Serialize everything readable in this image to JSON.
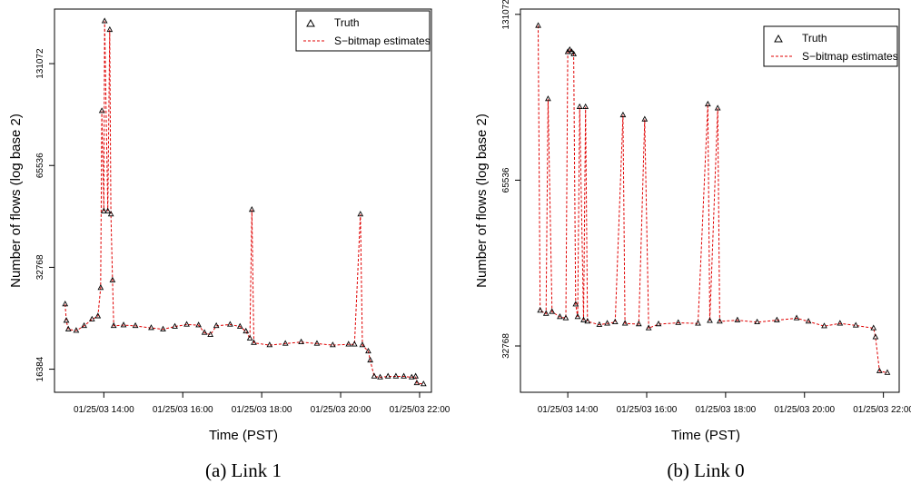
{
  "chart_data": [
    {
      "type": "line",
      "caption": "(a) Link 1",
      "xlabel": "Time (PST)",
      "ylabel": "Number of flows (log base 2)",
      "x_ticks": [
        "01/25/03 14:00",
        "01/25/03 16:00",
        "01/25/03 18:00",
        "01/25/03 20:00",
        "01/25/03 22:00"
      ],
      "y_ticks": [
        "16384",
        "32768",
        "65536",
        "131072"
      ],
      "y_scale": "log2",
      "ylim": [
        14000,
        190000
      ],
      "xlim_hours": [
        12.75,
        22.3
      ],
      "legend": {
        "position": "top-right",
        "entries": [
          "Truth",
          "S−bitmap estimates"
        ]
      },
      "series": [
        {
          "name": "Truth",
          "points": [
            [
              13.02,
              25500
            ],
            [
              13.05,
              22800
            ],
            [
              13.1,
              21500
            ],
            [
              13.3,
              21300
            ],
            [
              13.5,
              22000
            ],
            [
              13.7,
              23000
            ],
            [
              13.85,
              23500
            ],
            [
              13.92,
              28500
            ],
            [
              13.95,
              95000
            ],
            [
              14.0,
              48000
            ],
            [
              14.02,
              175000
            ],
            [
              14.1,
              48000
            ],
            [
              14.15,
              165000
            ],
            [
              14.18,
              47000
            ],
            [
              14.22,
              30000
            ],
            [
              14.25,
              22000
            ],
            [
              14.5,
              22100
            ],
            [
              14.8,
              22000
            ],
            [
              15.2,
              21700
            ],
            [
              15.5,
              21500
            ],
            [
              15.8,
              21900
            ],
            [
              16.1,
              22200
            ],
            [
              16.4,
              22100
            ],
            [
              16.55,
              21000
            ],
            [
              16.7,
              20700
            ],
            [
              16.85,
              22000
            ],
            [
              17.2,
              22200
            ],
            [
              17.45,
              21900
            ],
            [
              17.6,
              21200
            ],
            [
              17.7,
              20200
            ],
            [
              17.75,
              48500
            ],
            [
              17.8,
              19600
            ],
            [
              18.2,
              19300
            ],
            [
              18.6,
              19500
            ],
            [
              19.0,
              19700
            ],
            [
              19.4,
              19500
            ],
            [
              19.8,
              19300
            ],
            [
              20.2,
              19400
            ],
            [
              20.35,
              19400
            ],
            [
              20.5,
              47000
            ],
            [
              20.55,
              19300
            ],
            [
              20.7,
              18500
            ],
            [
              20.75,
              17400
            ],
            [
              20.85,
              15600
            ],
            [
              21.0,
              15500
            ],
            [
              21.2,
              15600
            ],
            [
              21.4,
              15600
            ],
            [
              21.6,
              15600
            ],
            [
              21.8,
              15500
            ],
            [
              21.9,
              15600
            ],
            [
              21.93,
              14900
            ],
            [
              22.1,
              14800
            ]
          ]
        },
        {
          "name": "S−bitmap estimates",
          "points": "same as Truth"
        }
      ]
    },
    {
      "type": "line",
      "caption": "(b) Link 0",
      "xlabel": "Time (PST)",
      "ylabel": "Number of flows (log base 2)",
      "x_ticks": [
        "01/25/03 14:00",
        "01/25/03 16:00",
        "01/25/03 18:00",
        "01/25/03 20:00",
        "01/25/03 22:00"
      ],
      "y_ticks": [
        "32768",
        "65536",
        "131072"
      ],
      "y_scale": "log2",
      "ylim": [
        27000,
        134000
      ],
      "xlim_hours": [
        12.8,
        22.4
      ],
      "legend": {
        "position": "top-right",
        "entries": [
          "Truth",
          "S−bitmap estimates"
        ]
      },
      "series": [
        {
          "name": "Truth",
          "points": [
            [
              13.25,
              125000
            ],
            [
              13.3,
              38000
            ],
            [
              13.45,
              37500
            ],
            [
              13.5,
              92000
            ],
            [
              13.6,
              37800
            ],
            [
              13.8,
              37000
            ],
            [
              13.95,
              36800
            ],
            [
              14.0,
              112000
            ],
            [
              14.05,
              113000
            ],
            [
              14.1,
              112000
            ],
            [
              14.15,
              111000
            ],
            [
              14.2,
              39000
            ],
            [
              14.25,
              37000
            ],
            [
              14.3,
              89000
            ],
            [
              14.4,
              36500
            ],
            [
              14.45,
              89000
            ],
            [
              14.5,
              36300
            ],
            [
              14.8,
              35800
            ],
            [
              15.0,
              36000
            ],
            [
              15.2,
              36200
            ],
            [
              15.4,
              86000
            ],
            [
              15.45,
              36000
            ],
            [
              15.8,
              35900
            ],
            [
              15.95,
              84500
            ],
            [
              16.05,
              35300
            ],
            [
              16.3,
              35900
            ],
            [
              16.8,
              36100
            ],
            [
              17.3,
              36000
            ],
            [
              17.55,
              90000
            ],
            [
              17.6,
              36400
            ],
            [
              17.8,
              88500
            ],
            [
              17.85,
              36300
            ],
            [
              18.3,
              36500
            ],
            [
              18.8,
              36200
            ],
            [
              19.3,
              36500
            ],
            [
              19.8,
              36800
            ],
            [
              20.1,
              36300
            ],
            [
              20.5,
              35600
            ],
            [
              20.9,
              36000
            ],
            [
              21.3,
              35700
            ],
            [
              21.75,
              35300
            ],
            [
              21.8,
              34000
            ],
            [
              21.9,
              29500
            ],
            [
              22.1,
              29300
            ]
          ]
        },
        {
          "name": "S−bitmap estimates",
          "points": "same as Truth"
        }
      ]
    }
  ]
}
